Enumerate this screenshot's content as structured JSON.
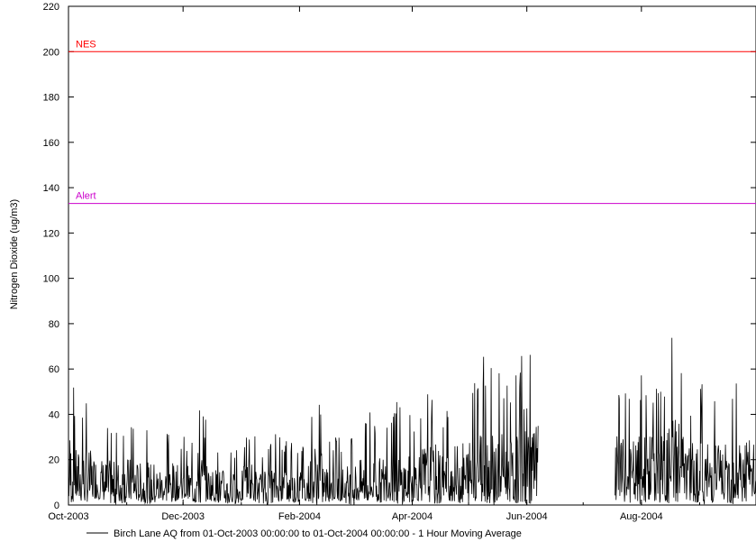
{
  "chart_data": {
    "type": "line",
    "title": "",
    "xlabel": "",
    "ylabel": "Nitrogen Dioxide (ug/m3)",
    "ylim": [
      0,
      220
    ],
    "xlim": [
      "2003-10-01",
      "2004-10-01"
    ],
    "yticks": [
      0,
      20,
      40,
      60,
      80,
      100,
      120,
      140,
      160,
      180,
      200,
      220
    ],
    "xticks": [
      {
        "label": "Oct-2003",
        "date": "2003-10-01"
      },
      {
        "label": "Dec-2003",
        "date": "2003-12-01"
      },
      {
        "label": "Feb-2004",
        "date": "2004-02-01"
      },
      {
        "label": "Apr-2004",
        "date": "2004-04-01"
      },
      {
        "label": "Jun-2004",
        "date": "2004-06-01"
      },
      {
        "label": "Aug-2004",
        "date": "2004-08-01"
      }
    ],
    "grid": false,
    "legend_placement": "bottom",
    "reference_lines": [
      {
        "label": "NES",
        "value": 200,
        "color": "#ff0000"
      },
      {
        "label": "Alert",
        "value": 133,
        "color": "#cc00cc"
      }
    ],
    "series": [
      {
        "name": "Birch Lane AQ from 01-Oct-2003 00:00:00 to 01-Oct-2004 00:00:00 - 1 Hour Moving Average",
        "color": "#000000",
        "data_gap": [
          "2004-06-07",
          "2004-07-18"
        ],
        "x": [
          "2003-10-01",
          "2003-10-05",
          "2003-10-10",
          "2003-10-15",
          "2003-10-20",
          "2003-10-25",
          "2003-10-31",
          "2003-11-05",
          "2003-11-10",
          "2003-11-15",
          "2003-11-20",
          "2003-11-25",
          "2003-11-30",
          "2003-12-05",
          "2003-12-10",
          "2003-12-15",
          "2003-12-20",
          "2003-12-25",
          "2003-12-31",
          "2004-01-05",
          "2004-01-10",
          "2004-01-15",
          "2004-01-20",
          "2004-01-25",
          "2004-01-31",
          "2004-02-05",
          "2004-02-10",
          "2004-02-15",
          "2004-02-20",
          "2004-02-25",
          "2004-02-29",
          "2004-03-05",
          "2004-03-10",
          "2004-03-15",
          "2004-03-20",
          "2004-03-25",
          "2004-03-31",
          "2004-04-05",
          "2004-04-10",
          "2004-04-15",
          "2004-04-20",
          "2004-04-25",
          "2004-04-30",
          "2004-05-05",
          "2004-05-10",
          "2004-05-15",
          "2004-05-20",
          "2004-05-25",
          "2004-05-31",
          "2004-06-05",
          "2004-07-20",
          "2004-07-25",
          "2004-07-31",
          "2004-08-05",
          "2004-08-10",
          "2004-08-15",
          "2004-08-20",
          "2004-08-25",
          "2004-08-31",
          "2004-09-05",
          "2004-09-10",
          "2004-09-15",
          "2004-09-20",
          "2004-09-25",
          "2004-09-30"
        ],
        "peaks": [
          68,
          45,
          47,
          42,
          38,
          35,
          40,
          37,
          33,
          36,
          31,
          35,
          30,
          33,
          48,
          31,
          30,
          28,
          25,
          39,
          27,
          29,
          32,
          30,
          28,
          31,
          55,
          33,
          30,
          32,
          35,
          37,
          42,
          38,
          48,
          45,
          40,
          47,
          52,
          48,
          42,
          50,
          55,
          60,
          70,
          62,
          58,
          50,
          85,
          67,
          55,
          50,
          57,
          60,
          55,
          63,
          91,
          45,
          55,
          52,
          58,
          48,
          66,
          60,
          50
        ],
        "lows": [
          0,
          2,
          1,
          3,
          2,
          0,
          1,
          2,
          1,
          0,
          2,
          1,
          3,
          1,
          0,
          2,
          1,
          0,
          1,
          2,
          1,
          0,
          2,
          1,
          1,
          2,
          0,
          1,
          2,
          1,
          0,
          2,
          1,
          1,
          2,
          0,
          1,
          2,
          1,
          0,
          2,
          1,
          0,
          2,
          1,
          0,
          2,
          1,
          0,
          1,
          2,
          1,
          0,
          2,
          1,
          0,
          1,
          2,
          1,
          0,
          2,
          1,
          0,
          1,
          2
        ]
      }
    ]
  }
}
